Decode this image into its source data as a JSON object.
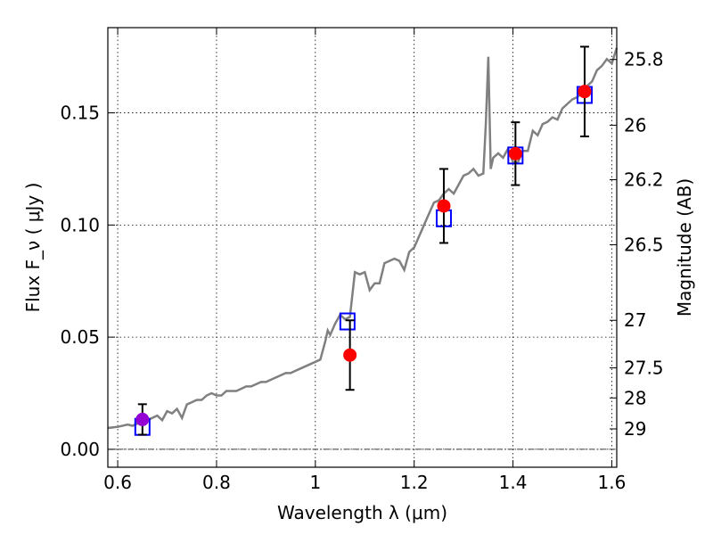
{
  "chart_data": {
    "type": "line",
    "xlabel": "Wavelength  λ (μm)",
    "ylabel": "Flux  F_ν  ( μJy )",
    "ylabel_right": "Magnitude (AB)",
    "xlim": [
      0.58,
      1.61
    ],
    "ylim": [
      -0.008,
      0.188
    ],
    "x_ticks": [
      0.6,
      0.8,
      1.0,
      1.2,
      1.4,
      1.6
    ],
    "x_tick_labels": [
      "0.6",
      "0.8",
      "1",
      "1.2",
      "1.4",
      "1.6"
    ],
    "y_ticks": [
      0.0,
      0.05,
      0.1,
      0.15
    ],
    "y_tick_labels": [
      "0.00",
      "0.05",
      "0.10",
      "0.15"
    ],
    "right_ticks": [
      {
        "label": "25.8",
        "flux": 0.1738
      },
      {
        "label": "26",
        "flux": 0.1445
      },
      {
        "label": "26.2",
        "flux": 0.1202
      },
      {
        "label": "26.5",
        "flux": 0.0912
      },
      {
        "label": "27",
        "flux": 0.0575
      },
      {
        "label": "27.5",
        "flux": 0.0363
      },
      {
        "label": "28",
        "flux": 0.0229
      },
      {
        "label": "29",
        "flux": 0.0091
      }
    ],
    "grid": true,
    "reference_line": 0.0,
    "series": [
      {
        "kind": "model_spectrum",
        "color": "#808080",
        "x": [
          0.58,
          0.6,
          0.62,
          0.63,
          0.64,
          0.65,
          0.66,
          0.67,
          0.68,
          0.69,
          0.7,
          0.71,
          0.72,
          0.73,
          0.74,
          0.75,
          0.76,
          0.77,
          0.78,
          0.79,
          0.8,
          0.81,
          0.82,
          0.83,
          0.84,
          0.85,
          0.86,
          0.87,
          0.88,
          0.89,
          0.9,
          0.91,
          0.92,
          0.93,
          0.94,
          0.95,
          0.96,
          0.97,
          0.98,
          0.99,
          1.0,
          1.01,
          1.02,
          1.025,
          1.03,
          1.04,
          1.05,
          1.06,
          1.07,
          1.08,
          1.09,
          1.1,
          1.11,
          1.12,
          1.13,
          1.14,
          1.15,
          1.16,
          1.17,
          1.18,
          1.19,
          1.2,
          1.21,
          1.22,
          1.23,
          1.24,
          1.25,
          1.26,
          1.27,
          1.28,
          1.29,
          1.3,
          1.31,
          1.32,
          1.33,
          1.34,
          1.345,
          1.35,
          1.355,
          1.36,
          1.37,
          1.38,
          1.39,
          1.4,
          1.41,
          1.42,
          1.43,
          1.44,
          1.45,
          1.46,
          1.47,
          1.48,
          1.49,
          1.5,
          1.51,
          1.52,
          1.53,
          1.54,
          1.55,
          1.56,
          1.57,
          1.58,
          1.59,
          1.6,
          1.61
        ],
        "y": [
          0.0095,
          0.01,
          0.011,
          0.0105,
          0.0115,
          0.012,
          0.013,
          0.014,
          0.015,
          0.013,
          0.017,
          0.016,
          0.018,
          0.014,
          0.02,
          0.021,
          0.022,
          0.022,
          0.024,
          0.025,
          0.024,
          0.024,
          0.026,
          0.026,
          0.026,
          0.027,
          0.028,
          0.028,
          0.029,
          0.03,
          0.03,
          0.031,
          0.032,
          0.033,
          0.034,
          0.034,
          0.035,
          0.036,
          0.037,
          0.038,
          0.039,
          0.04,
          0.048,
          0.053,
          0.051,
          0.056,
          0.06,
          0.058,
          0.059,
          0.079,
          0.078,
          0.079,
          0.071,
          0.074,
          0.074,
          0.083,
          0.084,
          0.085,
          0.084,
          0.08,
          0.088,
          0.09,
          0.095,
          0.1,
          0.105,
          0.11,
          0.111,
          0.114,
          0.116,
          0.114,
          0.118,
          0.122,
          0.123,
          0.125,
          0.122,
          0.123,
          0.145,
          0.175,
          0.125,
          0.13,
          0.132,
          0.13,
          0.134,
          0.128,
          0.128,
          0.133,
          0.133,
          0.142,
          0.14,
          0.145,
          0.146,
          0.148,
          0.147,
          0.152,
          0.154,
          0.156,
          0.157,
          0.159,
          0.162,
          0.164,
          0.169,
          0.171,
          0.174,
          0.172,
          0.179
        ]
      },
      {
        "kind": "model_points",
        "marker": "open-square",
        "color": "#0000ff",
        "points": [
          {
            "x": 0.65,
            "y": 0.01
          },
          {
            "x": 1.065,
            "y": 0.057
          },
          {
            "x": 1.26,
            "y": 0.103
          },
          {
            "x": 1.405,
            "y": 0.131
          },
          {
            "x": 1.545,
            "y": 0.158
          }
        ]
      },
      {
        "kind": "observed",
        "marker": "filled-circle",
        "points": [
          {
            "x": 0.65,
            "y": 0.0133,
            "err": 0.0068,
            "color": "#9400d3"
          },
          {
            "x": 1.07,
            "y": 0.042,
            "err": 0.0155,
            "color": "#ff0000"
          },
          {
            "x": 1.26,
            "y": 0.1085,
            "err": 0.0165,
            "color": "#ff0000"
          },
          {
            "x": 1.405,
            "y": 0.1318,
            "err": 0.014,
            "color": "#ff0000"
          },
          {
            "x": 1.545,
            "y": 0.1595,
            "err": 0.02,
            "color": "#ff0000"
          }
        ]
      }
    ]
  }
}
